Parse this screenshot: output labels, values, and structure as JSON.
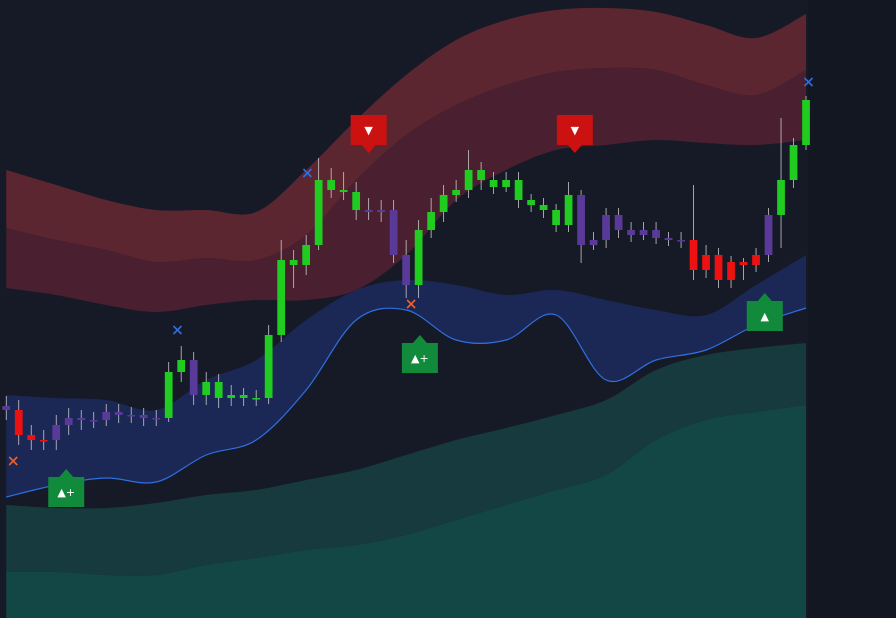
{
  "chart_data": {
    "type": "candlestick",
    "xlim": [
      -0.5,
      71.2
    ],
    "ylim": [
      0,
      618
    ],
    "palette": {
      "g": "#1fcc1f",
      "r": "#ee1111",
      "p": "#5a3a98"
    },
    "colors": [
      "p",
      "r",
      "r",
      "r",
      "p",
      "p",
      "p",
      "p",
      "p",
      "p",
      "p",
      "p",
      "p",
      "g",
      "g",
      "p",
      "g",
      "g",
      "g",
      "g",
      "g",
      "g",
      "g",
      "g",
      "g",
      "g",
      "g",
      "g",
      "g",
      "p",
      "p",
      "p",
      "p",
      "g",
      "g",
      "g",
      "g",
      "g",
      "g",
      "g",
      "g",
      "g",
      "g",
      "g",
      "g",
      "g",
      "p",
      "p",
      "p",
      "p",
      "p",
      "p",
      "p",
      "p",
      "p",
      "r",
      "r",
      "r",
      "r",
      "r",
      "r",
      "p",
      "g",
      "g",
      "g"
    ],
    "candles": [
      [
        212,
        222,
        198,
        208
      ],
      [
        208,
        218,
        173,
        183
      ],
      [
        183,
        193,
        168,
        178
      ],
      [
        178,
        188,
        168,
        178
      ],
      [
        178,
        203,
        168,
        193
      ],
      [
        193,
        210,
        183,
        200
      ],
      [
        200,
        208,
        188,
        198
      ],
      [
        198,
        206,
        190,
        198
      ],
      [
        198,
        214,
        192,
        206
      ],
      [
        206,
        214,
        195,
        203
      ],
      [
        203,
        211,
        195,
        203
      ],
      [
        203,
        210,
        192,
        200
      ],
      [
        200,
        208,
        192,
        200
      ],
      [
        200,
        256,
        196,
        246
      ],
      [
        246,
        272,
        236,
        258
      ],
      [
        258,
        266,
        213,
        223
      ],
      [
        223,
        246,
        213,
        236
      ],
      [
        236,
        244,
        210,
        220
      ],
      [
        220,
        233,
        212,
        223
      ],
      [
        223,
        230,
        212,
        220
      ],
      [
        220,
        228,
        212,
        220
      ],
      [
        220,
        293,
        214,
        283
      ],
      [
        283,
        378,
        276,
        358
      ],
      [
        358,
        368,
        330,
        353
      ],
      [
        353,
        383,
        343,
        373
      ],
      [
        373,
        460,
        368,
        438
      ],
      [
        438,
        450,
        420,
        428
      ],
      [
        428,
        446,
        418,
        426
      ],
      [
        426,
        436,
        398,
        408
      ],
      [
        408,
        420,
        398,
        406
      ],
      [
        406,
        418,
        396,
        408
      ],
      [
        408,
        418,
        355,
        363
      ],
      [
        363,
        378,
        320,
        333
      ],
      [
        333,
        398,
        320,
        388
      ],
      [
        388,
        420,
        380,
        406
      ],
      [
        406,
        433,
        396,
        423
      ],
      [
        423,
        438,
        416,
        428
      ],
      [
        428,
        468,
        420,
        448
      ],
      [
        448,
        456,
        428,
        438
      ],
      [
        438,
        446,
        424,
        431
      ],
      [
        431,
        446,
        426,
        438
      ],
      [
        438,
        446,
        410,
        418
      ],
      [
        418,
        424,
        406,
        413
      ],
      [
        413,
        420,
        400,
        408
      ],
      [
        408,
        414,
        386,
        393
      ],
      [
        393,
        436,
        386,
        423
      ],
      [
        423,
        428,
        355,
        373
      ],
      [
        373,
        386,
        368,
        378
      ],
      [
        378,
        410,
        370,
        403
      ],
      [
        403,
        410,
        380,
        388
      ],
      [
        388,
        396,
        376,
        383
      ],
      [
        383,
        396,
        378,
        388
      ],
      [
        388,
        396,
        374,
        380
      ],
      [
        380,
        386,
        372,
        378
      ],
      [
        378,
        386,
        370,
        378
      ],
      [
        378,
        433,
        338,
        348
      ],
      [
        348,
        373,
        340,
        363
      ],
      [
        363,
        370,
        330,
        338
      ],
      [
        338,
        362,
        330,
        356
      ],
      [
        356,
        360,
        338,
        353
      ],
      [
        353,
        370,
        346,
        363
      ],
      [
        363,
        410,
        356,
        403
      ],
      [
        403,
        500,
        370,
        438
      ],
      [
        438,
        480,
        430,
        473
      ],
      [
        473,
        522,
        468,
        518
      ]
    ],
    "band_x": [
      0,
      4,
      8,
      12,
      16,
      20,
      24,
      28,
      32,
      36,
      40,
      44,
      48,
      52,
      56,
      60,
      64
    ],
    "bands": [
      {
        "color": "#5c2631",
        "upper": [
          448,
          433,
          418,
          408,
          408,
          406,
          448,
          498,
          543,
          578,
          598,
          608,
          610,
          606,
          593,
          580,
          604
        ],
        "lower": [
          390,
          378,
          368,
          356,
          360,
          358,
          383,
          438,
          483,
          513,
          533,
          546,
          550,
          548,
          533,
          523,
          548
        ]
      },
      {
        "color": "#4a2030",
        "upper": [
          390,
          378,
          368,
          356,
          360,
          358,
          383,
          438,
          483,
          513,
          533,
          546,
          550,
          548,
          533,
          523,
          548
        ],
        "lower": [
          330,
          323,
          313,
          306,
          313,
          318,
          318,
          328,
          363,
          418,
          448,
          468,
          473,
          478,
          475,
          473,
          478
        ]
      },
      {
        "color": "#1b2755",
        "line": "#2f6fe0",
        "upper": [
          223,
          220,
          218,
          208,
          238,
          258,
          298,
          328,
          338,
          333,
          323,
          328,
          318,
          308,
          303,
          333,
          363
        ],
        "lower": [
          121,
          133,
          140,
          136,
          163,
          178,
          228,
          298,
          308,
          278,
          278,
          303,
          238,
          258,
          268,
          293,
          310
        ]
      },
      {
        "color": "#173a3e",
        "upper": [
          113,
          110,
          110,
          115,
          123,
          128,
          138,
          148,
          163,
          178,
          190,
          203,
          218,
          248,
          263,
          270,
          275
        ],
        "lower": [
          46,
          46,
          43,
          43,
          53,
          60,
          68,
          73,
          83,
          98,
          113,
          128,
          143,
          178,
          198,
          206,
          213
        ]
      },
      {
        "color": "#124745",
        "upper": [
          46,
          46,
          43,
          43,
          53,
          60,
          68,
          73,
          83,
          98,
          113,
          128,
          143,
          178,
          198,
          206,
          213
        ]
      }
    ],
    "signals": [
      {
        "label": "▼",
        "x": 29,
        "y": 488,
        "color": "#cc1111",
        "dir": "down"
      },
      {
        "label": "▼",
        "x": 45.5,
        "y": 488,
        "color": "#cc1111",
        "dir": "down"
      },
      {
        "label": "▲+",
        "x": 4.8,
        "y": 126,
        "color": "#118a3c",
        "dir": "up"
      },
      {
        "label": "▲+",
        "x": 33.1,
        "y": 260,
        "color": "#118a3c",
        "dir": "up"
      },
      {
        "label": "▲",
        "x": 60.7,
        "y": 302,
        "color": "#118a3c",
        "dir": "up"
      }
    ],
    "crosses": [
      {
        "x": 0.56,
        "y": 157,
        "color": "#f0602a"
      },
      {
        "x": 13.7,
        "y": 288,
        "color": "#2f6fe0"
      },
      {
        "x": 24.1,
        "y": 445,
        "color": "#2f6fe0"
      },
      {
        "x": 32.4,
        "y": 314,
        "color": "#f0602a"
      },
      {
        "x": 64.2,
        "y": 536,
        "color": "#2f6fe0"
      }
    ]
  }
}
